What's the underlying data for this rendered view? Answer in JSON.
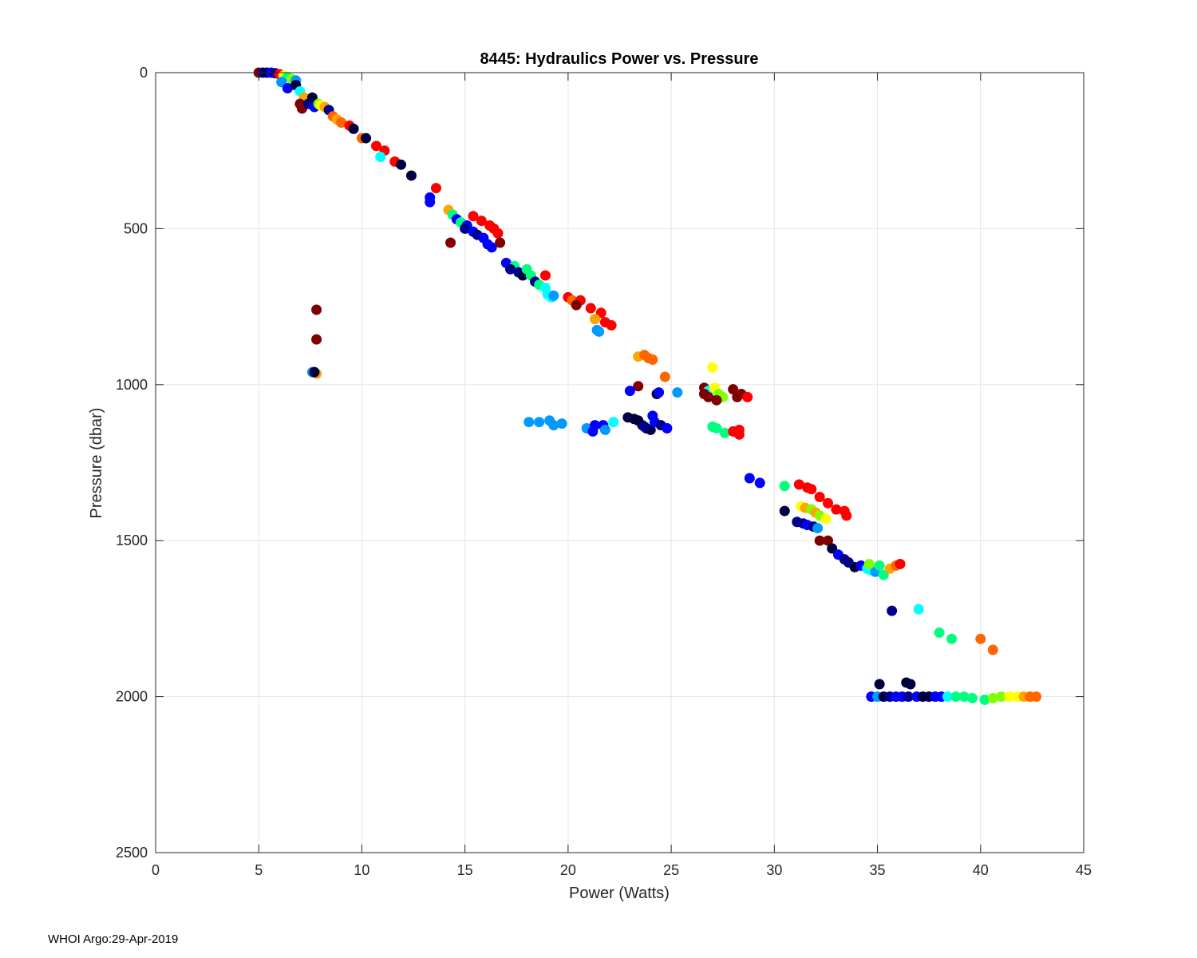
{
  "chart_data": {
    "type": "scatter",
    "title": "8445: Hydraulics Power vs. Pressure",
    "xlabel": "Power (Watts)",
    "ylabel": "Pressure (dbar)",
    "xlim": [
      0,
      45
    ],
    "ylim": [
      0,
      2500
    ],
    "y_reversed": true,
    "grid": true,
    "xticks": [
      0,
      5,
      10,
      15,
      20,
      25,
      30,
      35,
      40,
      45
    ],
    "yticks": [
      0,
      500,
      1000,
      1500,
      2000,
      2500
    ],
    "colormap": [
      "#800000",
      "#ff0000",
      "#ff6600",
      "#ffa500",
      "#ffff00",
      "#7fff00",
      "#00ff7f",
      "#00ffff",
      "#0099ff",
      "#0000ff",
      "#00008b",
      "#000040"
    ],
    "points": [
      [
        5.0,
        0,
        0
      ],
      [
        5.2,
        0,
        10
      ],
      [
        5.4,
        0,
        11
      ],
      [
        5.6,
        0,
        9
      ],
      [
        5.8,
        2,
        10
      ],
      [
        6.0,
        5,
        1
      ],
      [
        6.2,
        10,
        4
      ],
      [
        6.4,
        15,
        6
      ],
      [
        6.6,
        20,
        5
      ],
      [
        6.8,
        25,
        8
      ],
      [
        6.1,
        30,
        8
      ],
      [
        6.4,
        50,
        9
      ],
      [
        6.8,
        40,
        11
      ],
      [
        7.0,
        60,
        7
      ],
      [
        7.2,
        80,
        3
      ],
      [
        7.0,
        100,
        0
      ],
      [
        7.1,
        115,
        0
      ],
      [
        7.4,
        100,
        10
      ],
      [
        7.6,
        80,
        11
      ],
      [
        7.7,
        110,
        9
      ],
      [
        7.9,
        100,
        5
      ],
      [
        8.0,
        105,
        4
      ],
      [
        8.2,
        110,
        3
      ],
      [
        8.4,
        120,
        10
      ],
      [
        8.6,
        140,
        2
      ],
      [
        8.8,
        150,
        3
      ],
      [
        9.0,
        160,
        2
      ],
      [
        9.4,
        170,
        1
      ],
      [
        9.6,
        180,
        11
      ],
      [
        10.0,
        210,
        2
      ],
      [
        10.2,
        210,
        11
      ],
      [
        10.7,
        235,
        1
      ],
      [
        11.1,
        250,
        1
      ],
      [
        10.9,
        270,
        7
      ],
      [
        11.6,
        285,
        1
      ],
      [
        11.9,
        295,
        11
      ],
      [
        12.4,
        330,
        11
      ],
      [
        13.6,
        370,
        1
      ],
      [
        13.3,
        400,
        9
      ],
      [
        13.3,
        415,
        9
      ],
      [
        14.2,
        440,
        3
      ],
      [
        14.4,
        455,
        6
      ],
      [
        14.6,
        470,
        9
      ],
      [
        14.8,
        480,
        6
      ],
      [
        15.1,
        490,
        9
      ],
      [
        15.0,
        500,
        10
      ],
      [
        15.4,
        510,
        9
      ],
      [
        15.6,
        520,
        10
      ],
      [
        15.9,
        530,
        9
      ],
      [
        16.1,
        550,
        9
      ],
      [
        16.3,
        560,
        9
      ],
      [
        15.4,
        460,
        1
      ],
      [
        15.8,
        475,
        1
      ],
      [
        16.2,
        490,
        1
      ],
      [
        16.4,
        500,
        1
      ],
      [
        16.6,
        515,
        1
      ],
      [
        16.7,
        545,
        0
      ],
      [
        14.3,
        545,
        0
      ],
      [
        17.0,
        610,
        9
      ],
      [
        17.4,
        620,
        6
      ],
      [
        17.2,
        630,
        10
      ],
      [
        17.6,
        640,
        10
      ],
      [
        17.8,
        650,
        11
      ],
      [
        18.0,
        630,
        6
      ],
      [
        18.2,
        650,
        6
      ],
      [
        18.4,
        670,
        10
      ],
      [
        18.6,
        680,
        6
      ],
      [
        18.9,
        690,
        7
      ],
      [
        19.2,
        720,
        7
      ],
      [
        19.0,
        710,
        7
      ],
      [
        19.3,
        715,
        8
      ],
      [
        18.9,
        650,
        1
      ],
      [
        20.0,
        720,
        1
      ],
      [
        20.2,
        730,
        2
      ],
      [
        20.6,
        730,
        1
      ],
      [
        20.4,
        745,
        0
      ],
      [
        21.1,
        755,
        1
      ],
      [
        21.6,
        770,
        1
      ],
      [
        21.3,
        790,
        3
      ],
      [
        21.8,
        800,
        1
      ],
      [
        22.1,
        810,
        1
      ],
      [
        21.4,
        825,
        8
      ],
      [
        21.5,
        830,
        8
      ],
      [
        7.8,
        760,
        0
      ],
      [
        7.8,
        855,
        0
      ],
      [
        7.6,
        960,
        8
      ],
      [
        7.8,
        965,
        3
      ],
      [
        7.7,
        960,
        11
      ],
      [
        23.4,
        910,
        3
      ],
      [
        23.7,
        905,
        2
      ],
      [
        23.9,
        915,
        2
      ],
      [
        24.1,
        920,
        2
      ],
      [
        24.7,
        975,
        2
      ],
      [
        23.4,
        1005,
        0
      ],
      [
        23.0,
        1020,
        9
      ],
      [
        24.3,
        1030,
        11
      ],
      [
        24.4,
        1025,
        9
      ],
      [
        25.3,
        1025,
        8
      ],
      [
        26.6,
        1010,
        0
      ],
      [
        26.8,
        1020,
        7
      ],
      [
        27.0,
        945,
        4
      ],
      [
        27.1,
        1010,
        4
      ],
      [
        27.3,
        1030,
        5
      ],
      [
        27.5,
        1040,
        5
      ],
      [
        27.2,
        1050,
        0
      ],
      [
        28.0,
        1015,
        0
      ],
      [
        28.2,
        1040,
        0
      ],
      [
        28.4,
        1030,
        0
      ],
      [
        28.7,
        1040,
        1
      ],
      [
        26.6,
        1030,
        0
      ],
      [
        26.8,
        1040,
        0
      ],
      [
        18.1,
        1120,
        8
      ],
      [
        18.6,
        1120,
        8
      ],
      [
        19.1,
        1115,
        8
      ],
      [
        19.3,
        1130,
        8
      ],
      [
        19.7,
        1125,
        8
      ],
      [
        20.9,
        1140,
        8
      ],
      [
        21.2,
        1150,
        9
      ],
      [
        21.3,
        1130,
        9
      ],
      [
        21.7,
        1130,
        9
      ],
      [
        21.8,
        1145,
        8
      ],
      [
        22.2,
        1120,
        7
      ],
      [
        22.9,
        1105,
        11
      ],
      [
        23.2,
        1110,
        11
      ],
      [
        23.4,
        1115,
        11
      ],
      [
        23.6,
        1130,
        11
      ],
      [
        23.8,
        1140,
        11
      ],
      [
        24.0,
        1145,
        11
      ],
      [
        24.2,
        1120,
        9
      ],
      [
        24.5,
        1130,
        10
      ],
      [
        24.8,
        1140,
        9
      ],
      [
        24.1,
        1100,
        9
      ],
      [
        23.7,
        1135,
        10
      ],
      [
        27.0,
        1135,
        6
      ],
      [
        27.2,
        1140,
        6
      ],
      [
        27.6,
        1155,
        6
      ],
      [
        28.0,
        1150,
        1
      ],
      [
        28.3,
        1145,
        1
      ],
      [
        28.3,
        1160,
        1
      ],
      [
        28.8,
        1300,
        9
      ],
      [
        29.3,
        1315,
        9
      ],
      [
        30.5,
        1325,
        6
      ],
      [
        31.2,
        1320,
        1
      ],
      [
        31.6,
        1330,
        1
      ],
      [
        31.8,
        1335,
        1
      ],
      [
        32.2,
        1360,
        1
      ],
      [
        32.6,
        1380,
        1
      ],
      [
        33.0,
        1400,
        1
      ],
      [
        33.4,
        1405,
        1
      ],
      [
        33.5,
        1420,
        1
      ],
      [
        31.3,
        1390,
        4
      ],
      [
        31.5,
        1395,
        3
      ],
      [
        31.8,
        1400,
        5
      ],
      [
        32.0,
        1410,
        3
      ],
      [
        32.2,
        1420,
        5
      ],
      [
        32.5,
        1430,
        4
      ],
      [
        30.5,
        1405,
        11
      ],
      [
        31.1,
        1440,
        10
      ],
      [
        31.4,
        1445,
        10
      ],
      [
        31.6,
        1450,
        9
      ],
      [
        31.9,
        1455,
        10
      ],
      [
        32.1,
        1460,
        8
      ],
      [
        32.2,
        1500,
        0
      ],
      [
        32.6,
        1500,
        0
      ],
      [
        32.8,
        1525,
        11
      ],
      [
        33.1,
        1545,
        9
      ],
      [
        33.4,
        1560,
        10
      ],
      [
        33.6,
        1570,
        10
      ],
      [
        33.9,
        1585,
        11
      ],
      [
        34.2,
        1580,
        9
      ],
      [
        34.5,
        1590,
        7
      ],
      [
        34.7,
        1595,
        7
      ],
      [
        34.9,
        1600,
        8
      ],
      [
        35.3,
        1610,
        6
      ],
      [
        35.6,
        1590,
        3
      ],
      [
        35.9,
        1580,
        2
      ],
      [
        36.1,
        1575,
        1
      ],
      [
        35.1,
        1580,
        6
      ],
      [
        34.6,
        1575,
        5
      ],
      [
        35.7,
        1725,
        10
      ],
      [
        37.0,
        1720,
        7
      ],
      [
        38.0,
        1795,
        6
      ],
      [
        38.6,
        1815,
        6
      ],
      [
        40.0,
        1815,
        2
      ],
      [
        40.6,
        1850,
        2
      ],
      [
        35.1,
        1960,
        11
      ],
      [
        36.4,
        1955,
        11
      ],
      [
        36.6,
        1960,
        11
      ],
      [
        34.7,
        2000,
        9
      ],
      [
        35.0,
        2000,
        8
      ],
      [
        35.3,
        2000,
        11
      ],
      [
        35.6,
        2000,
        10
      ],
      [
        35.9,
        2000,
        9
      ],
      [
        36.2,
        2000,
        9
      ],
      [
        36.5,
        2000,
        10
      ],
      [
        36.9,
        2000,
        9
      ],
      [
        37.2,
        2000,
        11
      ],
      [
        37.5,
        2000,
        11
      ],
      [
        37.8,
        2000,
        9
      ],
      [
        38.1,
        2000,
        9
      ],
      [
        38.4,
        2000,
        7
      ],
      [
        38.8,
        2000,
        6
      ],
      [
        39.2,
        2000,
        6
      ],
      [
        39.6,
        2005,
        6
      ],
      [
        40.2,
        2010,
        6
      ],
      [
        40.6,
        2005,
        5
      ],
      [
        41.0,
        2000,
        5
      ],
      [
        41.4,
        2000,
        4
      ],
      [
        41.8,
        2000,
        4
      ],
      [
        42.1,
        2000,
        3
      ],
      [
        42.4,
        2000,
        2
      ],
      [
        42.7,
        2000,
        2
      ]
    ]
  },
  "footer": "WHOI Argo:29-Apr-2019"
}
